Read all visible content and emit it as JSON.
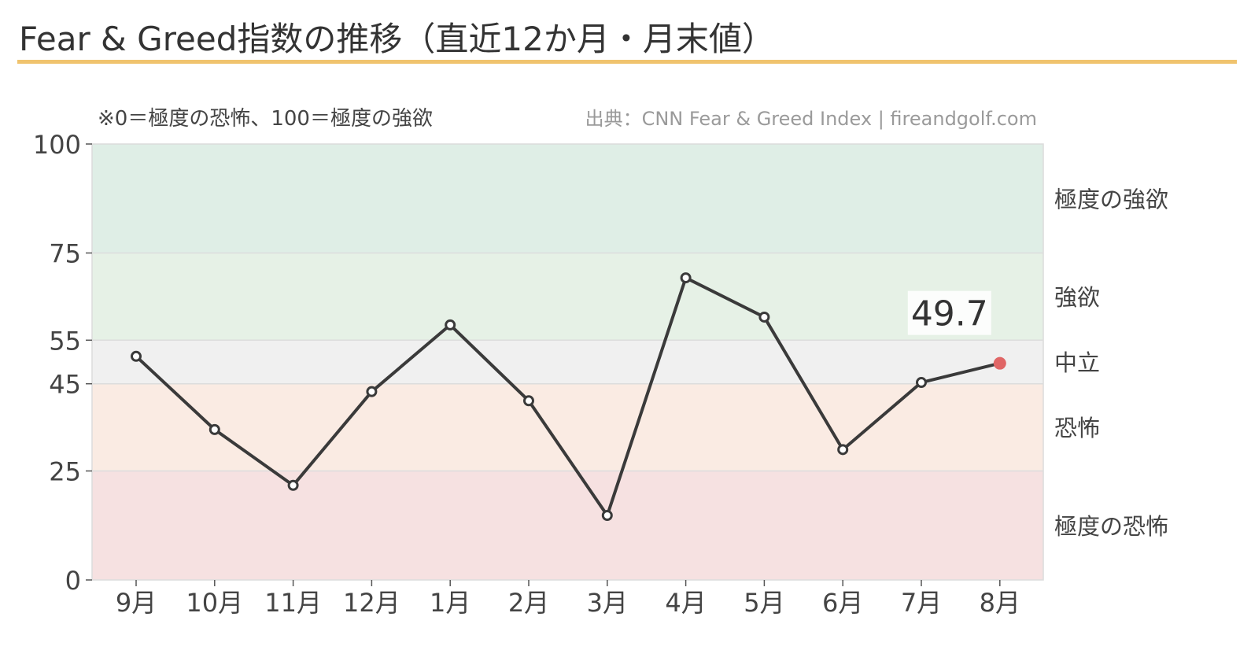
{
  "title": "Fear & Greed指数の推移（直近12か月・月末値）",
  "note": "※0＝極度の恐怖、100＝極度の強欲",
  "source": "出典：CNN Fear & Greed Index | fireandgolf.com",
  "colors": {
    "title_rule": "#f0c36e",
    "line": "#3a3a3a",
    "last_point": "#e06666",
    "band_extreme_greed": "#dfeee6",
    "band_greed": "#e6f1e6",
    "band_neutral": "#f0f0f0",
    "band_fear": "#faebe3",
    "band_extreme_fear": "#f6e1e1",
    "band_border": "#dcdcdc"
  },
  "chart_data": {
    "type": "line",
    "categories": [
      "9月",
      "10月",
      "11月",
      "12月",
      "1月",
      "2月",
      "3月",
      "4月",
      "5月",
      "6月",
      "7月",
      "8月"
    ],
    "values": [
      51.3,
      34.5,
      21.7,
      43.2,
      58.5,
      41.1,
      14.8,
      69.3,
      60.3,
      29.9,
      45.3,
      49.7
    ],
    "ylim": [
      0,
      100
    ],
    "yticks": [
      0,
      25,
      45,
      55,
      75,
      100
    ],
    "bands": [
      {
        "label": "極度の恐怖",
        "from": 0,
        "to": 25,
        "color_key": "band_extreme_fear"
      },
      {
        "label": "恐怖",
        "from": 25,
        "to": 45,
        "color_key": "band_fear"
      },
      {
        "label": "中立",
        "from": 45,
        "to": 55,
        "color_key": "band_neutral"
      },
      {
        "label": "強欲",
        "from": 55,
        "to": 75,
        "color_key": "band_greed"
      },
      {
        "label": "極度の強欲",
        "from": 75,
        "to": 100,
        "color_key": "band_extreme_greed"
      }
    ],
    "last_value_label": "49.7",
    "grid": false,
    "xlabel": "",
    "ylabel": ""
  }
}
